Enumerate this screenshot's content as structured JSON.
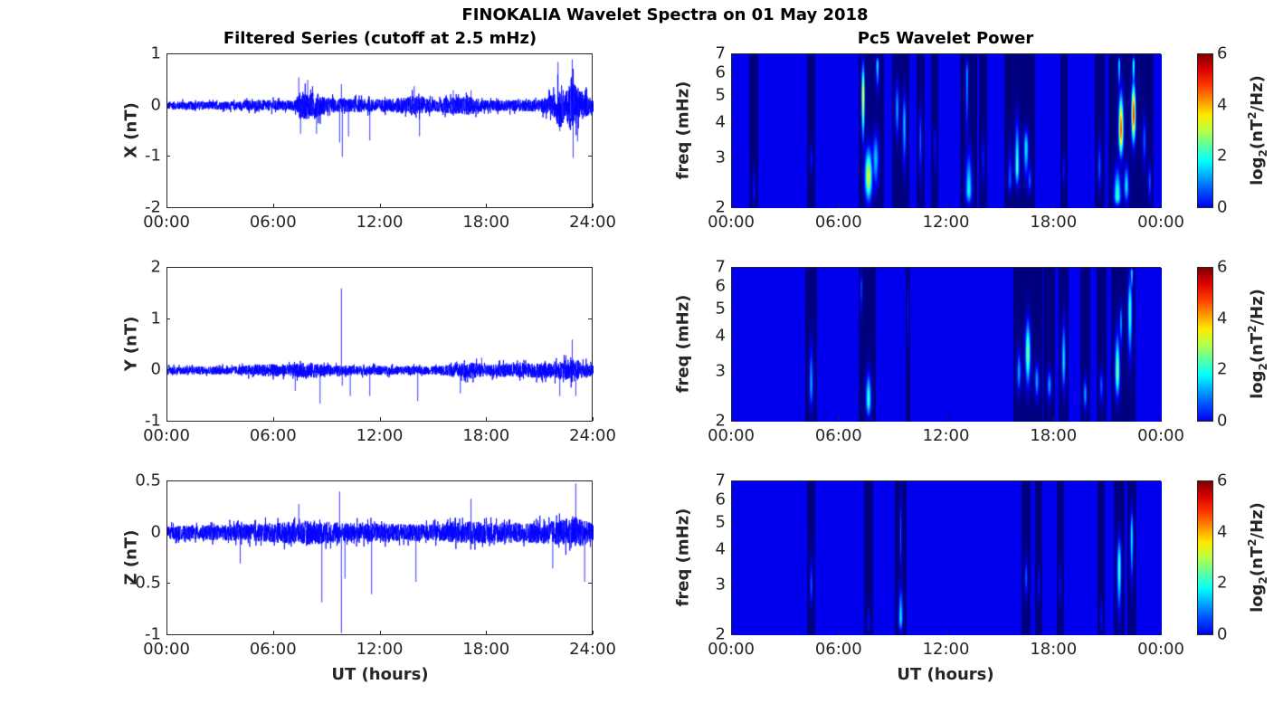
{
  "chart_data": {
    "title": "FINOKALIA Wavelet Spectra on 01 May 2018",
    "left_title": "Filtered Series (cutoff at 2.5 mHz)",
    "right_title": "Pc5 Wavelet Power",
    "xlabel": "UT (hours)",
    "left_xticks": [
      "00:00",
      "06:00",
      "12:00",
      "18:00",
      "24:00"
    ],
    "right_xticks": [
      "00:00",
      "06:00",
      "12:00",
      "18:00",
      "00:00"
    ],
    "xlim_hours": [
      0,
      24
    ],
    "freq_label": "freq (mHz)",
    "freq_ylim": [
      2,
      7
    ],
    "freq_ticks": [
      "2",
      "3",
      "4",
      "5",
      "6",
      "7"
    ],
    "colorbar": {
      "label_parts": [
        "log",
        "2",
        "(nT",
        "2",
        "/Hz)"
      ],
      "range": [
        0,
        6
      ],
      "ticks": [
        "0",
        "2",
        "4",
        "6"
      ],
      "colormap": "jet"
    },
    "series": [
      {
        "type": "line",
        "name": "X",
        "ylabel": "X (nT)",
        "color": "#0000ff",
        "ylim": [
          -2,
          1
        ],
        "yticks": [
          "-2",
          "-1",
          "0",
          "1"
        ],
        "envelope": [
          [
            0,
            0.1
          ],
          [
            4,
            0.1
          ],
          [
            4.5,
            0.13
          ],
          [
            7.2,
            0.13
          ],
          [
            7.5,
            0.35
          ],
          [
            8.5,
            0.3
          ],
          [
            9,
            0.18
          ],
          [
            12,
            0.15
          ],
          [
            13.2,
            0.2
          ],
          [
            14,
            0.25
          ],
          [
            15,
            0.15
          ],
          [
            16,
            0.2
          ],
          [
            17,
            0.22
          ],
          [
            18,
            0.13
          ],
          [
            21,
            0.15
          ],
          [
            21.8,
            0.3
          ],
          [
            22.1,
            0.6
          ],
          [
            22.4,
            0.3
          ],
          [
            22.8,
            0.7
          ],
          [
            23.2,
            0.4
          ],
          [
            24,
            0.15
          ]
        ],
        "spikes": [
          [
            7.4,
            0.55
          ],
          [
            7.5,
            -0.55
          ],
          [
            7.9,
            0.5
          ],
          [
            8.4,
            -0.55
          ],
          [
            9.7,
            -0.72
          ],
          [
            9.8,
            0.42
          ],
          [
            9.85,
            -1.0
          ],
          [
            10.2,
            -0.6
          ],
          [
            11.4,
            -0.68
          ],
          [
            13.9,
            0.38
          ],
          [
            14.2,
            -0.6
          ],
          [
            16.1,
            0.3
          ],
          [
            17.1,
            0.3
          ],
          [
            22.0,
            0.85
          ],
          [
            22.1,
            -0.5
          ],
          [
            22.8,
            0.9
          ],
          [
            22.85,
            -1.02
          ],
          [
            23.1,
            -0.7
          ]
        ]
      },
      {
        "type": "line",
        "name": "Y",
        "ylabel": "Y (nT)",
        "color": "#0000ff",
        "ylim": [
          -1,
          2
        ],
        "yticks": [
          "-1",
          "0",
          "1",
          "2"
        ],
        "envelope": [
          [
            0,
            0.1
          ],
          [
            4,
            0.1
          ],
          [
            5,
            0.15
          ],
          [
            7,
            0.15
          ],
          [
            8,
            0.2
          ],
          [
            9,
            0.12
          ],
          [
            15,
            0.1
          ],
          [
            16,
            0.15
          ],
          [
            17,
            0.2
          ],
          [
            18,
            0.15
          ],
          [
            22,
            0.2
          ],
          [
            22.8,
            0.3
          ],
          [
            24,
            0.12
          ]
        ],
        "spikes": [
          [
            9.8,
            1.6
          ],
          [
            9.85,
            -0.3
          ],
          [
            7.2,
            -0.4
          ],
          [
            8.6,
            -0.65
          ],
          [
            10.3,
            -0.5
          ],
          [
            11.4,
            -0.5
          ],
          [
            14.1,
            -0.6
          ],
          [
            16.5,
            -0.45
          ],
          [
            17.7,
            0.25
          ],
          [
            22.1,
            -0.5
          ],
          [
            22.8,
            0.6
          ],
          [
            23.0,
            -0.5
          ]
        ]
      },
      {
        "type": "line",
        "name": "Z",
        "ylabel": "Z (nT)",
        "color": "#0000ff",
        "ylim": [
          -1,
          0.5
        ],
        "yticks": [
          "-1",
          "-0.5",
          "0",
          "0.5"
        ],
        "envelope": [
          [
            0,
            0.08
          ],
          [
            4,
            0.1
          ],
          [
            6,
            0.12
          ],
          [
            8,
            0.15
          ],
          [
            10,
            0.12
          ],
          [
            15,
            0.1
          ],
          [
            17,
            0.14
          ],
          [
            20,
            0.12
          ],
          [
            22,
            0.15
          ],
          [
            23,
            0.2
          ],
          [
            24,
            0.1
          ]
        ],
        "spikes": [
          [
            4.1,
            -0.3
          ],
          [
            7.4,
            0.28
          ],
          [
            8.7,
            -0.68
          ],
          [
            9.7,
            0.4
          ],
          [
            9.8,
            -0.98
          ],
          [
            10.0,
            -0.45
          ],
          [
            11.5,
            -0.6
          ],
          [
            14.0,
            -0.48
          ],
          [
            17.1,
            0.33
          ],
          [
            21.7,
            -0.35
          ],
          [
            23.0,
            0.48
          ],
          [
            23.5,
            -0.48
          ]
        ]
      }
    ],
    "spectra": [
      {
        "type": "heatmap",
        "name": "X wavelet power",
        "blobs": [
          [
            1.2,
            2.3,
            1.0,
            0.06,
            [
              2,
              2.9
            ]
          ],
          [
            4.4,
            3.0,
            1.0,
            0.06,
            [
              2.6,
              3.5
            ]
          ],
          [
            7.3,
            5.0,
            4.5,
            0.06,
            [
              3.2,
              7
            ]
          ],
          [
            7.6,
            2.6,
            4.2,
            0.14,
            [
              2,
              3.5
            ]
          ],
          [
            8.0,
            3.0,
            2.2,
            0.12,
            [
              2.2,
              4
            ]
          ],
          [
            8.1,
            6.5,
            2.5,
            0.06,
            [
              5,
              7
            ]
          ],
          [
            9.2,
            4.5,
            2.0,
            0.07,
            [
              3.3,
              6
            ]
          ],
          [
            9.6,
            4.0,
            2.2,
            0.07,
            [
              2.5,
              5.5
            ]
          ],
          [
            10.5,
            3.5,
            1.5,
            0.06,
            [
              2.3,
              5
            ]
          ],
          [
            11.3,
            3.5,
            1.0,
            0.05,
            [
              2.5,
              4
            ]
          ],
          [
            13.2,
            2.3,
            2.6,
            0.12,
            [
              2,
              3.5
            ]
          ],
          [
            13.1,
            6.0,
            2.0,
            0.05,
            [
              3,
              7
            ]
          ],
          [
            14.0,
            3.0,
            1.0,
            0.06,
            [
              2.3,
              3.8
            ]
          ],
          [
            15.5,
            2.5,
            1.5,
            0.08,
            [
              2.2,
              3.5
            ]
          ],
          [
            15.9,
            2.8,
            3.0,
            0.08,
            [
              2.3,
              4.5
            ]
          ],
          [
            16.4,
            3.3,
            2.5,
            0.09,
            [
              2.4,
              4
            ]
          ],
          [
            16.6,
            2.5,
            1.5,
            0.08,
            [
              2.2,
              3
            ]
          ],
          [
            18.5,
            2.7,
            1.0,
            0.05,
            [
              2.3,
              3.3
            ]
          ],
          [
            20.5,
            2.8,
            1.5,
            0.07,
            [
              2.2,
              3.8
            ]
          ],
          [
            21.5,
            2.2,
            3.0,
            0.13,
            [
              2,
              3
            ]
          ],
          [
            21.7,
            3.8,
            5.5,
            0.09,
            [
              2.9,
              5.5
            ]
          ],
          [
            21.6,
            6.5,
            2.5,
            0.05,
            [
              5,
              7
            ]
          ],
          [
            22.0,
            2.4,
            2.5,
            0.09,
            [
              2,
              3
            ]
          ],
          [
            22.4,
            4.3,
            5.8,
            0.08,
            [
              3.2,
              6
            ]
          ],
          [
            22.4,
            6.5,
            3.0,
            0.05,
            [
              5,
              7
            ]
          ],
          [
            23.0,
            3.5,
            1.5,
            0.07,
            [
              2.6,
              4.5
            ]
          ],
          [
            23.3,
            2.5,
            1.5,
            0.06,
            [
              2,
              3
            ]
          ]
        ]
      },
      {
        "type": "heatmap",
        "name": "Y wavelet power",
        "blobs": [
          [
            4.4,
            2.7,
            2.0,
            0.08,
            [
              2.1,
              4.2
            ]
          ],
          [
            7.2,
            6.0,
            1.5,
            0.04,
            [
              4.5,
              7
            ]
          ],
          [
            7.6,
            2.4,
            3.0,
            0.1,
            [
              2,
              3.2
            ]
          ],
          [
            9.8,
            5.0,
            1.0,
            0.03,
            [
              3,
              7
            ]
          ],
          [
            16.0,
            3.0,
            2.0,
            0.08,
            [
              2.4,
              3.8
            ]
          ],
          [
            16.5,
            3.5,
            3.5,
            0.1,
            [
              2.5,
              5
            ]
          ],
          [
            17.0,
            2.8,
            2.0,
            0.08,
            [
              2.3,
              3.4
            ]
          ],
          [
            17.7,
            2.7,
            2.0,
            0.08,
            [
              2.3,
              3.2
            ]
          ],
          [
            18.5,
            3.3,
            2.5,
            0.07,
            [
              2.4,
              5
            ]
          ],
          [
            19.7,
            2.5,
            2.0,
            0.07,
            [
              2.1,
              3
            ]
          ],
          [
            20.6,
            2.7,
            1.5,
            0.07,
            [
              2.2,
              3.2
            ]
          ],
          [
            21.5,
            3.0,
            3.5,
            0.09,
            [
              2.3,
              4.5
            ]
          ],
          [
            21.7,
            4.5,
            2.0,
            0.05,
            [
              3.5,
              5.5
            ]
          ],
          [
            22.2,
            5.0,
            3.0,
            0.08,
            [
              3,
              7
            ]
          ],
          [
            22.3,
            6.8,
            2.5,
            0.05,
            [
              5.5,
              7
            ]
          ]
        ]
      },
      {
        "type": "heatmap",
        "name": "Z wavelet power",
        "blobs": [
          [
            4.4,
            3.0,
            1.5,
            0.06,
            [
              2.4,
              4
            ]
          ],
          [
            7.6,
            2.2,
            1.0,
            0.06,
            [
              2,
              2.6
            ]
          ],
          [
            9.4,
            2.3,
            2.5,
            0.08,
            [
              2,
              3.2
            ]
          ],
          [
            9.4,
            4.5,
            1.5,
            0.04,
            [
              3,
              7
            ]
          ],
          [
            16.4,
            3.2,
            1.5,
            0.06,
            [
              2.6,
              4
            ]
          ],
          [
            17.1,
            3.0,
            1.0,
            0.05,
            [
              2.5,
              3.7
            ]
          ],
          [
            18.3,
            3.0,
            0.8,
            0.05,
            [
              2.4,
              4
            ]
          ],
          [
            20.6,
            2.3,
            1.0,
            0.05,
            [
              2,
              2.7
            ]
          ],
          [
            21.6,
            3.5,
            3.0,
            0.08,
            [
              2.2,
              4.8
            ]
          ],
          [
            22.3,
            4.5,
            2.5,
            0.06,
            [
              2.8,
              6
            ]
          ]
        ]
      }
    ]
  }
}
